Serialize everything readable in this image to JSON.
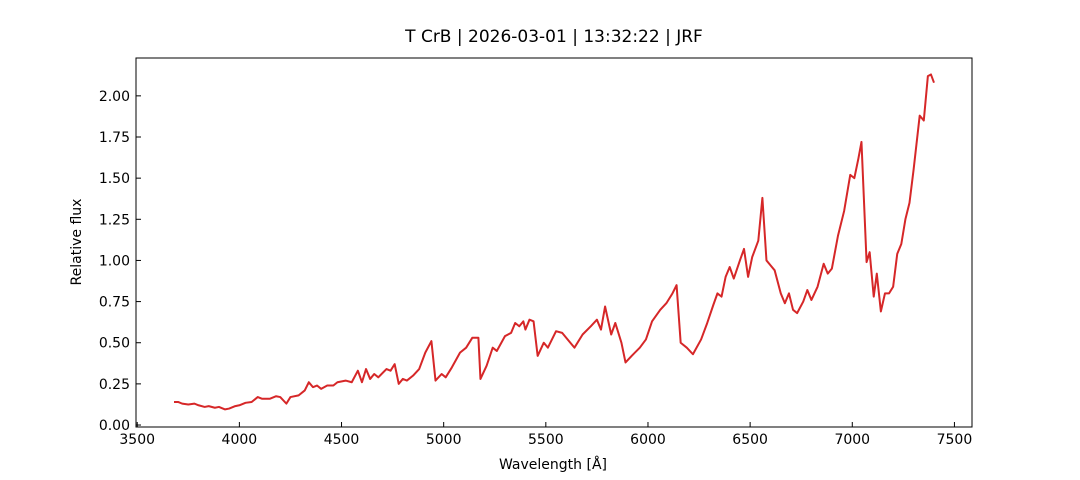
{
  "chart_data": {
    "type": "line",
    "title": "T CrB | 2026-03-01 | 13:32:22 | JRF",
    "xlabel": "Wavelength [Å]",
    "ylabel": "Relative flux",
    "xlim": [
      3494,
      7586
    ],
    "ylim": [
      -0.012,
      2.23
    ],
    "xticks": [
      3500,
      4000,
      4500,
      5000,
      5500,
      6000,
      6500,
      7000,
      7500
    ],
    "yticks": [
      {
        "value": 0,
        "label": "0.00"
      },
      {
        "value": 0.25,
        "label": "0.25"
      },
      {
        "value": 0.5,
        "label": "0.50"
      },
      {
        "value": 0.75,
        "label": "0.75"
      },
      {
        "value": 1,
        "label": "1.00"
      },
      {
        "value": 1.25,
        "label": "1.25"
      },
      {
        "value": 1.5,
        "label": "1.50"
      },
      {
        "value": 1.75,
        "label": "1.75"
      },
      {
        "value": 2,
        "label": "2.00"
      }
    ],
    "x": [
      3680,
      3700,
      3720,
      3750,
      3780,
      3800,
      3830,
      3850,
      3880,
      3900,
      3930,
      3950,
      3980,
      4000,
      4030,
      4060,
      4090,
      4110,
      4150,
      4180,
      4200,
      4230,
      4250,
      4290,
      4320,
      4340,
      4360,
      4380,
      4400,
      4430,
      4460,
      4480,
      4520,
      4550,
      4580,
      4600,
      4620,
      4640,
      4660,
      4680,
      4720,
      4740,
      4760,
      4780,
      4800,
      4820,
      4850,
      4880,
      4910,
      4940,
      4960,
      4990,
      5010,
      5040,
      5080,
      5110,
      5140,
      5170,
      5180,
      5210,
      5240,
      5260,
      5300,
      5330,
      5350,
      5370,
      5390,
      5400,
      5420,
      5440,
      5460,
      5490,
      5510,
      5550,
      5580,
      5620,
      5640,
      5680,
      5720,
      5750,
      5770,
      5790,
      5820,
      5840,
      5870,
      5890,
      5920,
      5960,
      5990,
      6020,
      6060,
      6090,
      6120,
      6140,
      6160,
      6190,
      6220,
      6260,
      6290,
      6320,
      6340,
      6360,
      6380,
      6400,
      6420,
      6450,
      6470,
      6490,
      6510,
      6540,
      6560,
      6580,
      6600,
      6620,
      6650,
      6670,
      6690,
      6710,
      6730,
      6760,
      6780,
      6800,
      6830,
      6860,
      6880,
      6900,
      6930,
      6960,
      6990,
      7010,
      7030,
      7045,
      7070,
      7085,
      7105,
      7120,
      7140,
      7160,
      7180,
      7200,
      7220,
      7240,
      7260,
      7280,
      7300,
      7330,
      7350,
      7370,
      7385,
      7400
    ],
    "series": [
      {
        "name": "T CrB",
        "color": "#d62728",
        "values": [
          0.14,
          0.14,
          0.13,
          0.125,
          0.13,
          0.12,
          0.11,
          0.115,
          0.105,
          0.11,
          0.095,
          0.1,
          0.115,
          0.12,
          0.135,
          0.14,
          0.17,
          0.16,
          0.16,
          0.175,
          0.17,
          0.13,
          0.17,
          0.18,
          0.21,
          0.26,
          0.23,
          0.24,
          0.22,
          0.24,
          0.24,
          0.26,
          0.27,
          0.26,
          0.33,
          0.26,
          0.34,
          0.28,
          0.31,
          0.29,
          0.34,
          0.33,
          0.37,
          0.25,
          0.28,
          0.27,
          0.3,
          0.34,
          0.44,
          0.51,
          0.27,
          0.31,
          0.29,
          0.35,
          0.44,
          0.47,
          0.53,
          0.53,
          0.28,
          0.36,
          0.47,
          0.45,
          0.54,
          0.56,
          0.62,
          0.6,
          0.63,
          0.58,
          0.64,
          0.63,
          0.42,
          0.5,
          0.47,
          0.57,
          0.56,
          0.5,
          0.47,
          0.55,
          0.6,
          0.64,
          0.58,
          0.72,
          0.55,
          0.62,
          0.5,
          0.38,
          0.42,
          0.47,
          0.52,
          0.63,
          0.7,
          0.74,
          0.8,
          0.85,
          0.5,
          0.47,
          0.43,
          0.52,
          0.62,
          0.73,
          0.8,
          0.78,
          0.9,
          0.96,
          0.89,
          1.0,
          1.07,
          0.9,
          1.02,
          1.12,
          1.38,
          1.0,
          0.97,
          0.94,
          0.8,
          0.74,
          0.8,
          0.7,
          0.68,
          0.75,
          0.82,
          0.76,
          0.84,
          0.98,
          0.92,
          0.95,
          1.15,
          1.3,
          1.52,
          1.5,
          1.62,
          1.72,
          0.99,
          1.05,
          0.78,
          0.92,
          0.69,
          0.8,
          0.8,
          0.84,
          1.04,
          1.1,
          1.25,
          1.35,
          1.55,
          1.88,
          1.85,
          2.12,
          2.13,
          2.08
        ]
      }
    ]
  }
}
